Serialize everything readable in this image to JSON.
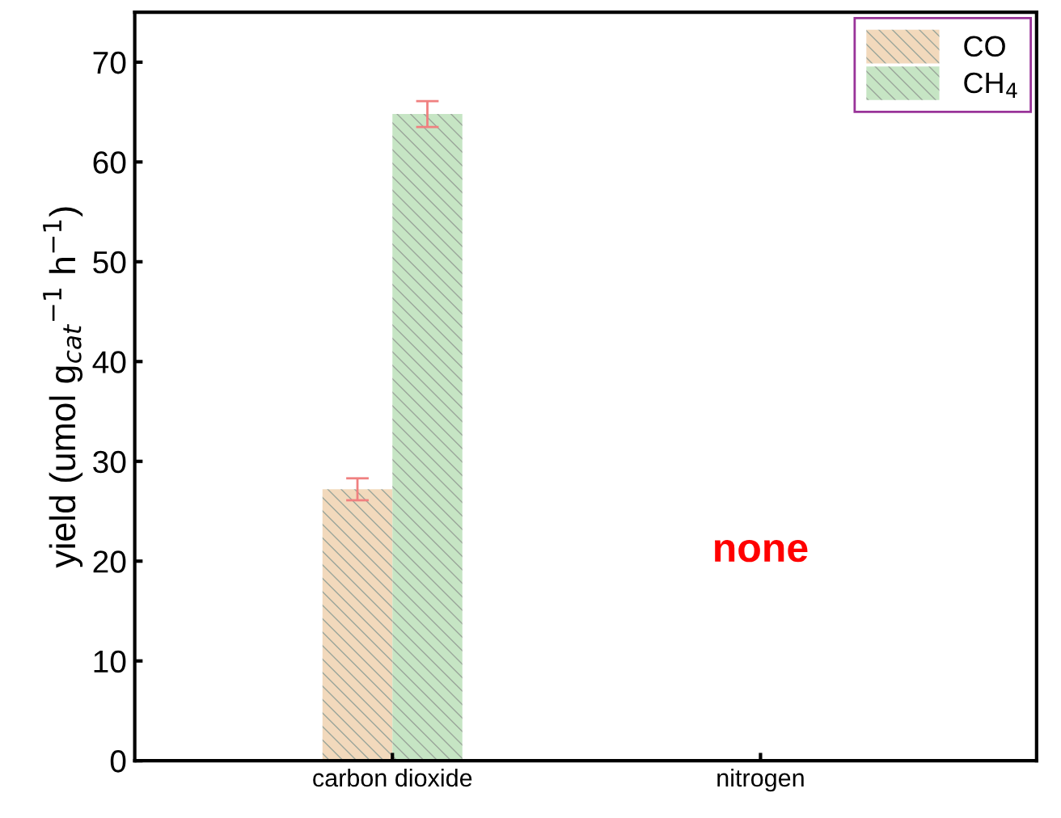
{
  "chart_data": {
    "type": "bar",
    "ylabel": "yield (umol g$_{cat}$$^{−1}$ h$^{−1}$)",
    "categories": [
      "carbon dioxide",
      "nitrogen"
    ],
    "series": [
      {
        "name": "CO",
        "color": "#f2d9bc",
        "values": [
          27.2,
          null
        ],
        "errors": [
          1.1,
          null
        ]
      },
      {
        "name": "CH$_{4}$",
        "color": "#c6e5c4",
        "values": [
          64.8,
          null
        ],
        "errors": [
          1.3,
          null
        ]
      }
    ],
    "ylim": [
      0,
      75
    ],
    "yticks": [
      0,
      10,
      20,
      30,
      40,
      50,
      60,
      70
    ],
    "annotations": [
      "none"
    ],
    "legend": "top right",
    "grid": false
  }
}
